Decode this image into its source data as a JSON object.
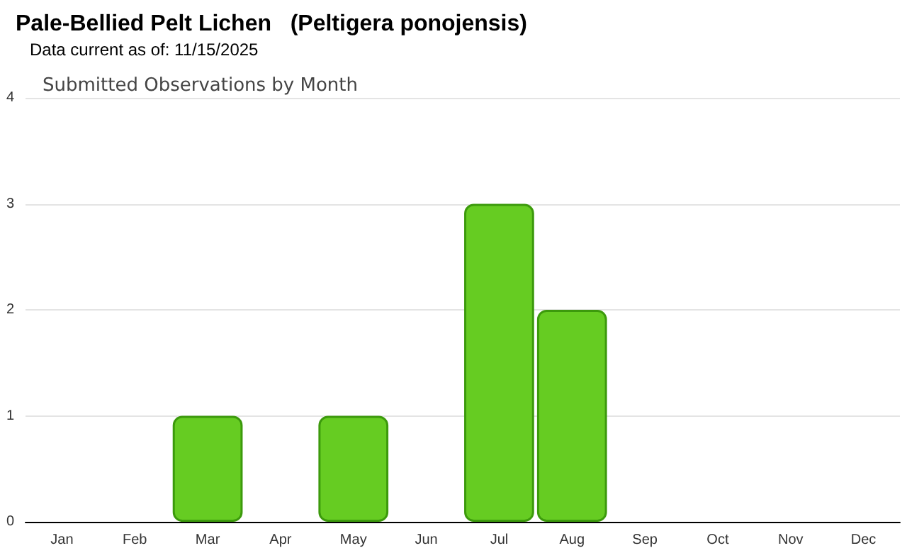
{
  "chart_data": {
    "type": "bar",
    "title": "Pale-Bellied Pelt Lichen   (Peltigera ponojensis)",
    "subtitle": "Data current as of: 11/15/2025",
    "annotations": [
      "Submitted Observations by Month"
    ],
    "categories": [
      "Jan",
      "Feb",
      "Mar",
      "Apr",
      "May",
      "Jun",
      "Jul",
      "Aug",
      "Sep",
      "Oct",
      "Nov",
      "Dec"
    ],
    "values": [
      0,
      0,
      1,
      0,
      1,
      0,
      3,
      2,
      0,
      0,
      0,
      0
    ],
    "color": "#66cc22",
    "ylim": [
      0,
      4
    ],
    "yticks": [
      0,
      1,
      2,
      3,
      4
    ],
    "grid": "y"
  }
}
